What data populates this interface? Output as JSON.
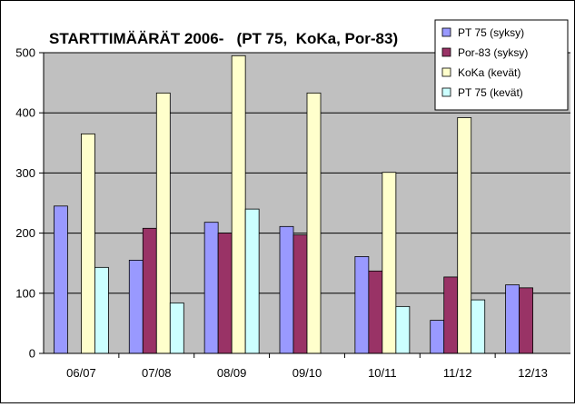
{
  "chart_data": {
    "type": "bar",
    "title": "STARTTIMÄÄRÄT 2006-   (PT 75,  KoKa, Por-83)",
    "categories": [
      "06/07",
      "07/08",
      "08/09",
      "09/10",
      "10/11",
      "11/12",
      "12/13"
    ],
    "ylim": [
      0,
      500
    ],
    "yticks": [
      "0",
      "100",
      "200",
      "300",
      "400",
      "500"
    ],
    "grid": true,
    "legend_position": "top-right",
    "series": [
      {
        "name": "PT 75 (syksy)",
        "color": "#9999ff",
        "values": [
          245,
          155,
          218,
          211,
          161,
          55,
          114
        ]
      },
      {
        "name": "Por-83 (syksy)",
        "color": "#993366",
        "values": [
          null,
          208,
          200,
          197,
          137,
          127,
          109
        ]
      },
      {
        "name": "KoKa (kevät)",
        "color": "#ffffcc",
        "values": [
          365,
          433,
          495,
          433,
          301,
          392,
          null
        ]
      },
      {
        "name": "PT 75 (kevät)",
        "color": "#ccffff",
        "values": [
          143,
          84,
          240,
          null,
          78,
          89,
          null
        ]
      }
    ],
    "plot_background": "#c0c0c0"
  }
}
